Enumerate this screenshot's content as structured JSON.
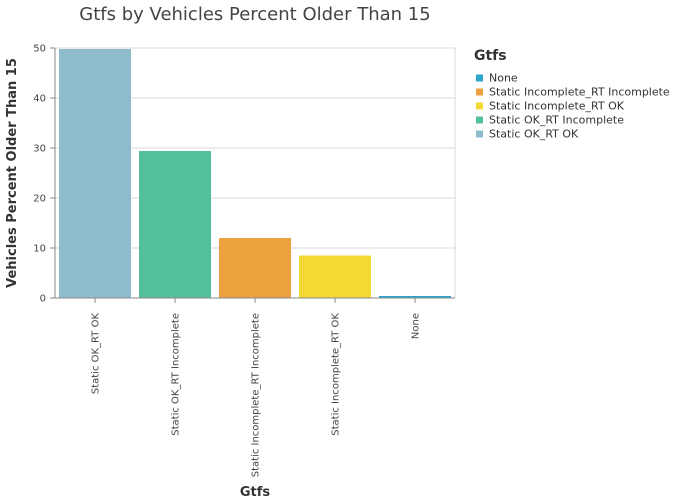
{
  "chart_data": {
    "type": "bar",
    "title": "Gtfs by Vehicles Percent Older Than 15",
    "xlabel": "Gtfs",
    "ylabel": "Vehicles Percent Older Than 15",
    "ylim": [
      0,
      50
    ],
    "yticks": [
      0,
      10,
      20,
      30,
      40,
      50
    ],
    "grid": true,
    "categories": [
      "Static OK_RT OK",
      "Static OK_RT Incomplete",
      "Static Incomplete_RT Incomplete",
      "Static Incomplete_RT OK",
      "None"
    ],
    "values": [
      49.8,
      29.4,
      12.0,
      8.5,
      0.4
    ],
    "colors": [
      "#8fbccc",
      "#52c09b",
      "#eba13d",
      "#f2d933",
      "#2ca6cf"
    ],
    "legend": {
      "title": "Gtfs",
      "position": "right",
      "items": [
        {
          "label": "None",
          "color": "#2ca6cf"
        },
        {
          "label": "Static Incomplete_RT Incomplete",
          "color": "#eba13d"
        },
        {
          "label": "Static Incomplete_RT OK",
          "color": "#f2d933"
        },
        {
          "label": "Static OK_RT Incomplete",
          "color": "#52c09b"
        },
        {
          "label": "Static OK_RT OK",
          "color": "#8fbccc"
        }
      ]
    }
  }
}
